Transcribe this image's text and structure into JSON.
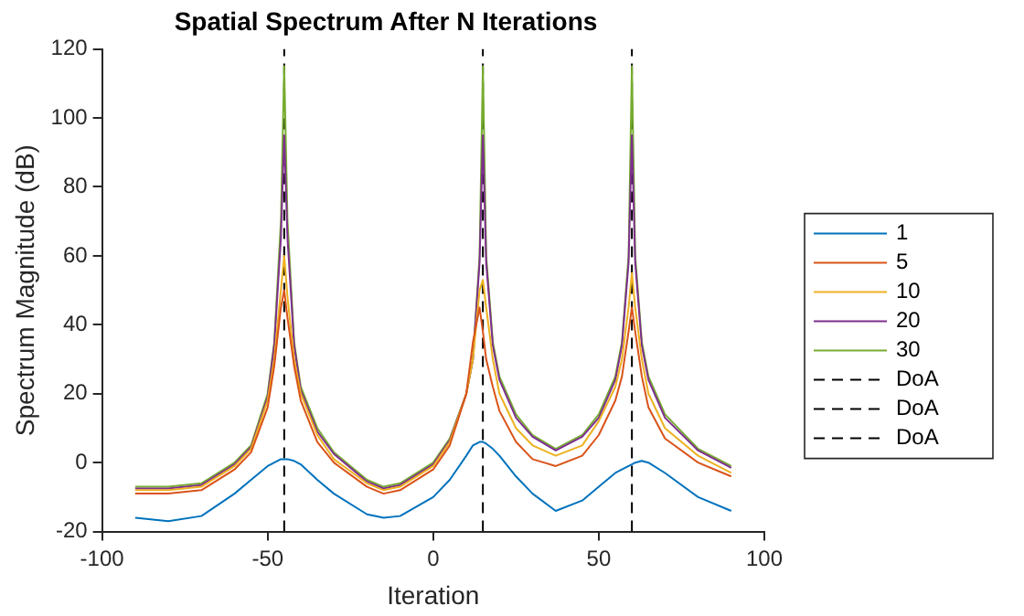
{
  "chart_data": {
    "type": "line",
    "title": "Spatial Spectrum After N Iterations",
    "xlabel": "Iteration",
    "ylabel": "Spectrum Magnitude (dB)",
    "x": [
      -90,
      -80,
      -70,
      -60,
      -55,
      -50,
      -48,
      -46,
      -45,
      -44,
      -42,
      -40,
      -35,
      -30,
      -20,
      -15,
      -10,
      0,
      5,
      10,
      12,
      14,
      15,
      16,
      18,
      20,
      25,
      30,
      37,
      45,
      50,
      55,
      57,
      59,
      60,
      61,
      63,
      65,
      70,
      80,
      90
    ],
    "series": [
      {
        "name": "1",
        "color": "#0072bd",
        "values": [
          -16,
          -17,
          -15.5,
          -9,
          -5,
          -1,
          0,
          1,
          1,
          1,
          0.5,
          -0.5,
          -5,
          -9,
          -15,
          -16,
          -15.5,
          -10,
          -5,
          2,
          5,
          6,
          6,
          5.5,
          4,
          2,
          -4,
          -9,
          -14,
          -11,
          -7,
          -3,
          -2,
          -1,
          -0.5,
          0,
          0.5,
          0,
          -3,
          -10,
          -14
        ]
      },
      {
        "name": "5",
        "color": "#d95319",
        "values": [
          -9,
          -9,
          -8,
          -2,
          3,
          16,
          28,
          45,
          50,
          42,
          28,
          18,
          6,
          0,
          -7,
          -9,
          -8,
          -2,
          5,
          20,
          35,
          45,
          38,
          30,
          22,
          15,
          6,
          1,
          -1,
          2,
          8,
          18,
          25,
          38,
          45,
          38,
          25,
          16,
          7,
          0,
          -4
        ]
      },
      {
        "name": "10",
        "color": "#edb120",
        "values": [
          -8,
          -8,
          -7,
          -1,
          4,
          18,
          30,
          50,
          60,
          48,
          30,
          20,
          8,
          1,
          -6,
          -8,
          -7,
          -1,
          6,
          20,
          30,
          50,
          53,
          45,
          30,
          20,
          10,
          5,
          2,
          5,
          12,
          22,
          30,
          45,
          55,
          45,
          30,
          20,
          10,
          2,
          -3
        ]
      },
      {
        "name": "20",
        "color": "#7e2f8e",
        "values": [
          -7.5,
          -7.5,
          -6.5,
          -0.5,
          4.5,
          19,
          34,
          65,
          95,
          65,
          34,
          21,
          9,
          2.5,
          -5.5,
          -7.5,
          -6.5,
          -0.5,
          6.5,
          20,
          30,
          58,
          95,
          58,
          34,
          24,
          13,
          7.5,
          3.5,
          7.5,
          13,
          24,
          34,
          58,
          95,
          58,
          34,
          24,
          13,
          3.5,
          -1.5
        ]
      },
      {
        "name": "30",
        "color": "#77ac30",
        "values": [
          -7,
          -7,
          -6,
          0,
          5,
          20,
          35,
          70,
          115,
          70,
          35,
          22,
          10,
          3,
          -5,
          -7,
          -6,
          0,
          7,
          20,
          30,
          60,
          115,
          60,
          35,
          25,
          14,
          8,
          4,
          8,
          14,
          25,
          35,
          60,
          115,
          60,
          35,
          25,
          14,
          4,
          -1
        ]
      },
      {
        "name": "DoA",
        "color": "#000000",
        "line_style": "dashed",
        "x": [
          -45,
          -45
        ],
        "values": [
          -20,
          120
        ]
      },
      {
        "name": "DoA",
        "color": "#000000",
        "line_style": "dashed",
        "x": [
          15,
          15
        ],
        "values": [
          -20,
          120
        ]
      },
      {
        "name": "DoA",
        "color": "#000000",
        "line_style": "dashed",
        "x": [
          60,
          60
        ],
        "values": [
          -20,
          120
        ]
      }
    ],
    "xlim": [
      -100,
      100
    ],
    "xticks": [
      -100,
      -50,
      0,
      50,
      100
    ],
    "ylim": [
      -20,
      120
    ],
    "yticks": [
      -20,
      0,
      20,
      40,
      60,
      80,
      100,
      120
    ],
    "grid": false,
    "legend": "right",
    "line_style": "solid",
    "marker": "none"
  }
}
